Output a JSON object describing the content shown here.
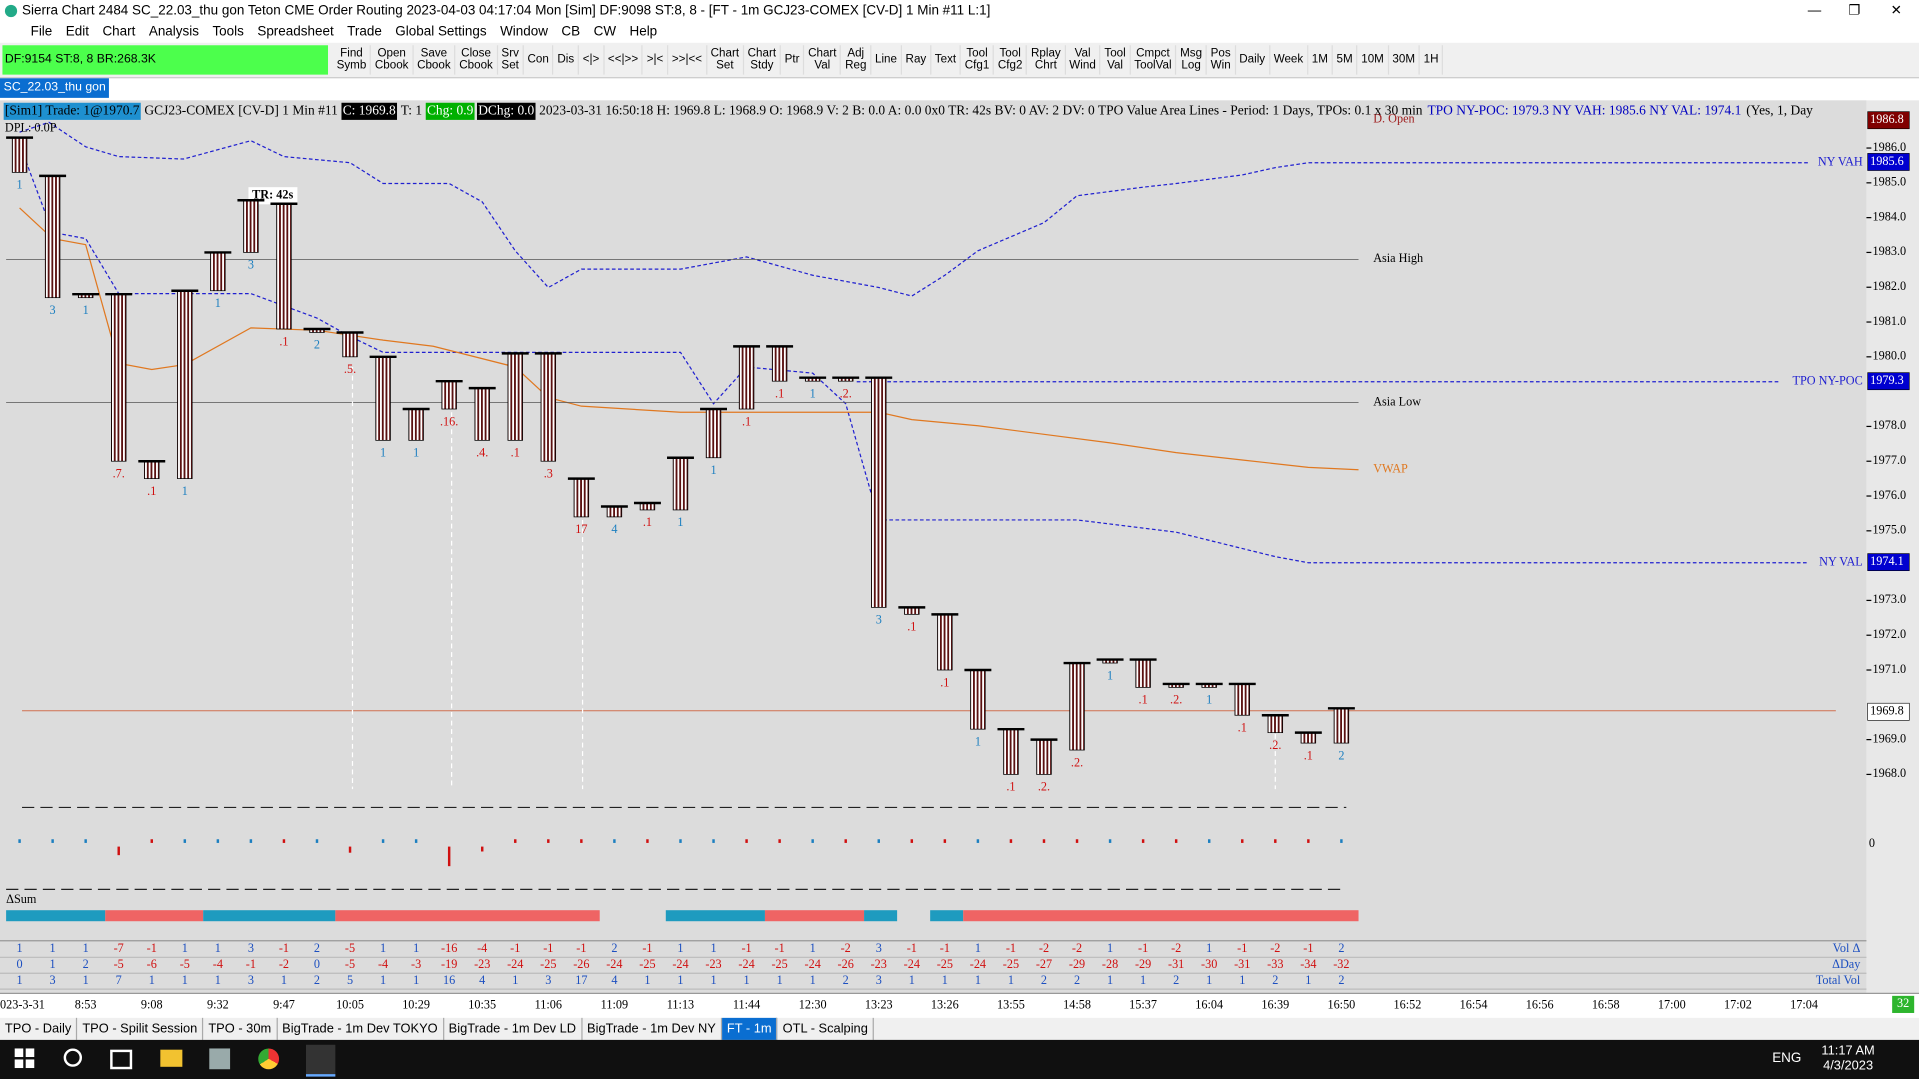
{
  "window": {
    "title": "Sierra Chart 2484 SC_22.03_thu gon  Teton CME Order Routing 2023-04-03  04:17:04 Mon [Sim]  DF:9098  ST:8, 8 - [FT - 1m GCJ23-COMEX [CV-D]  1 Min  #11 L:1]"
  },
  "menu": [
    "File",
    "Edit",
    "Chart",
    "Analysis",
    "Tools",
    "Spreadsheet",
    "Trade",
    "Global Settings",
    "Window",
    "CB",
    "CW",
    "Help"
  ],
  "toolbar": {
    "status": "DF:9154  ST:8, 8  BR:268.3K",
    "buttons": [
      "Find\nSymb",
      "Open\nCbook",
      "Save\nCbook",
      "Close\nCbook",
      "Srv\nSet",
      "Con",
      "Dis",
      "<|>",
      "<<|>>",
      ">|<",
      ">>|<<",
      "Chart\nSet",
      "Chart\nStdy",
      "Ptr",
      "Chart\nVal",
      "Adj\nReg",
      "Line",
      "Ray",
      "Text",
      "Tool\nCfg1",
      "Tool\nCfg2",
      "Rplay\nChrt",
      "Val\nWind",
      "Tool\nVal",
      "Cmpct\nToolVal",
      "Msg\nLog",
      "Pos\nWin",
      "Daily",
      "Week",
      "1M",
      "5M",
      "10M",
      "30M",
      "1H"
    ]
  },
  "chart_tab": "SC_22.03_thu gon",
  "header": [
    {
      "text": "[Sim1]  Trade: 1@1970.7",
      "bg": "#1e90d0",
      "fg": "#000"
    },
    {
      "text": "GCJ23-COMEX [CV-D]  1 Min  #11",
      "bg": "none",
      "fg": "#000"
    },
    {
      "text": "C: 1969.8",
      "bg": "#000",
      "fg": "#fff"
    },
    {
      "text": "T: 1",
      "bg": "none",
      "fg": "#000"
    },
    {
      "text": "Chg: 0.9",
      "bg": "#00b000",
      "fg": "#fff"
    },
    {
      "text": "DChg: 0.0",
      "bg": "#000",
      "fg": "#fff"
    },
    {
      "text": "2023-03-31 16:50:18 H: 1969.8 L: 1968.9 O: 1968.9 V: 2 B: 0.0 A: 0.0 0x0 TR: 42s BV: 0 AV: 2 DV: 0 TPO Value Area Lines - Period: 1 Days, TPOs: 0.1 x 30 min",
      "bg": "none",
      "fg": "#000"
    },
    {
      "text": "TPO NY-POC: 1979.3  NY VAH: 1985.6  NY VAL: 1974.1",
      "bg": "none",
      "fg": "#0000c0"
    },
    {
      "text": "(Yes, 1, Day",
      "bg": "none",
      "fg": "#000"
    }
  ],
  "dpl": "DPL: 0.0P",
  "tr_label": "TR: 42s",
  "level_labels": {
    "d_open": "D. Open",
    "ny_vah": "NY VAH",
    "asia_high": "Asia High",
    "poc": "TPO NY-POC",
    "asia_low": "Asia Low",
    "vwap": "VWAP",
    "ny_val": "NY VAL"
  },
  "price_ticks": [
    {
      "value": 1986,
      "label": "1986.0"
    },
    {
      "value": 1985,
      "label": "1985.0"
    },
    {
      "value": 1984,
      "label": "1984.0"
    },
    {
      "value": 1983,
      "label": "1983.0"
    },
    {
      "value": 1982,
      "label": "1982.0"
    },
    {
      "value": 1981,
      "label": "1981.0"
    },
    {
      "value": 1980,
      "label": "1980.0"
    },
    {
      "value": 1978,
      "label": "1978.0"
    },
    {
      "value": 1977,
      "label": "1977.0"
    },
    {
      "value": 1976,
      "label": "1976.0"
    },
    {
      "value": 1975,
      "label": "1975.0"
    },
    {
      "value": 1973,
      "label": "1973.0"
    },
    {
      "value": 1972,
      "label": "1972.0"
    },
    {
      "value": 1971,
      "label": "1971.0"
    },
    {
      "value": 1969,
      "label": "1969.0"
    },
    {
      "value": 1968,
      "label": "1968.0"
    }
  ],
  "price_boxes": [
    {
      "value": 1986.8,
      "color": "#800000",
      "fg": "#fff"
    },
    {
      "value": 1985.6,
      "color": "#0000d0",
      "fg": "#fff"
    },
    {
      "value": 1979.3,
      "color": "#0000d0",
      "fg": "#fff"
    },
    {
      "value": 1974.1,
      "color": "#0000d0",
      "fg": "#fff"
    },
    {
      "value": 1969.8,
      "color": "#ffffff",
      "fg": "#000"
    }
  ],
  "time_labels": [
    "023-3-31",
    "8:53",
    "9:08",
    "9:32",
    "9:47",
    "10:05",
    "10:29",
    "10:35",
    "11:06",
    "11:09",
    "11:13",
    "11:44",
    "12:30",
    "13:23",
    "13:26",
    "13:55",
    "14:58",
    "15:37",
    "16:04",
    "16:39",
    "16:50",
    "16:52",
    "16:54",
    "16:56",
    "16:58",
    "17:00",
    "17:02",
    "17:04"
  ],
  "bars": [
    {
      "high": 1986.3,
      "low": 1985.3,
      "label": "1"
    },
    {
      "high": 1985.2,
      "low": 1981.7,
      "label": "3"
    },
    {
      "high": 1981.8,
      "low": 1981.7,
      "label": "1"
    },
    {
      "high": 1981.8,
      "low": 1977.0,
      "label": ".7."
    },
    {
      "high": 1977.0,
      "low": 1976.5,
      "label": ".1"
    },
    {
      "high": 1981.9,
      "low": 1976.5,
      "label": "1"
    },
    {
      "high": 1983.0,
      "low": 1981.9,
      "label": "1"
    },
    {
      "high": 1984.5,
      "low": 1983.0,
      "label": "3"
    },
    {
      "high": 1984.4,
      "low": 1980.8,
      "label": ".1"
    },
    {
      "high": 1980.8,
      "low": 1980.7,
      "label": "2"
    },
    {
      "high": 1980.7,
      "low": 1980.0,
      "label": ".5."
    },
    {
      "high": 1980.0,
      "low": 1977.6,
      "label": "1"
    },
    {
      "high": 1978.5,
      "low": 1977.6,
      "label": "1"
    },
    {
      "high": 1979.3,
      "low": 1978.5,
      "label": ".16."
    },
    {
      "high": 1979.1,
      "low": 1977.6,
      "label": ".4."
    },
    {
      "high": 1980.1,
      "low": 1977.6,
      "label": ".1"
    },
    {
      "high": 1980.1,
      "low": 1977.0,
      "label": ".3"
    },
    {
      "high": 1976.5,
      "low": 1975.4,
      "label": "17"
    },
    {
      "high": 1975.7,
      "low": 1975.4,
      "label": "4"
    },
    {
      "high": 1975.8,
      "low": 1975.6,
      "label": ".1"
    },
    {
      "high": 1977.1,
      "low": 1975.6,
      "label": "1"
    },
    {
      "high": 1978.5,
      "low": 1977.1,
      "label": "1"
    },
    {
      "high": 1980.3,
      "low": 1978.5,
      "label": ".1"
    },
    {
      "high": 1980.3,
      "low": 1979.3,
      "label": ".1"
    },
    {
      "high": 1979.4,
      "low": 1979.3,
      "label": "1"
    },
    {
      "high": 1979.4,
      "low": 1979.3,
      "label": ".2."
    },
    {
      "high": 1979.4,
      "low": 1972.8,
      "label": "3"
    },
    {
      "high": 1972.8,
      "low": 1972.6,
      "label": ".1"
    },
    {
      "high": 1972.6,
      "low": 1971.0,
      "label": ".1"
    },
    {
      "high": 1971.0,
      "low": 1969.3,
      "label": "1"
    },
    {
      "high": 1969.3,
      "low": 1968.0,
      "label": ".1"
    },
    {
      "high": 1969.0,
      "low": 1968.0,
      "label": ".2."
    },
    {
      "high": 1971.2,
      "low": 1968.7,
      "label": ".2."
    },
    {
      "high": 1971.3,
      "low": 1971.2,
      "label": "1"
    },
    {
      "high": 1971.3,
      "low": 1970.5,
      "label": ".1"
    },
    {
      "high": 1970.6,
      "low": 1970.5,
      "label": ".2."
    },
    {
      "high": 1970.6,
      "low": 1970.5,
      "label": "1"
    },
    {
      "high": 1970.6,
      "low": 1969.7,
      "label": ".1"
    },
    {
      "high": 1969.7,
      "low": 1969.2,
      "label": ".2."
    },
    {
      "high": 1969.2,
      "low": 1968.9,
      "label": ".1"
    },
    {
      "high": 1969.9,
      "low": 1968.9,
      "label": "2"
    }
  ],
  "lower_panel": {
    "zero": "0",
    "delta_sum": "ΔSum"
  },
  "table": {
    "rows": [
      {
        "name": "Vol Δ",
        "values": [
          1,
          1,
          1,
          -7,
          -1,
          1,
          1,
          3,
          -1,
          2,
          -5,
          1,
          1,
          -16,
          -4,
          -1,
          -1,
          -1,
          2,
          -1,
          1,
          1,
          -1,
          -1,
          1,
          -2,
          3,
          -1,
          -1,
          1,
          -1,
          -2,
          -2,
          1,
          -1,
          -2,
          1,
          -1,
          -2,
          -1,
          2
        ]
      },
      {
        "name": "ΔDay",
        "values": [
          0,
          1,
          2,
          -5,
          -6,
          -5,
          -4,
          -1,
          -2,
          0,
          -5,
          -4,
          -3,
          -19,
          -23,
          -24,
          -25,
          -26,
          -24,
          -25,
          -24,
          -23,
          -24,
          -25,
          -24,
          -26,
          -23,
          -24,
          -25,
          -24,
          -25,
          -27,
          -29,
          -28,
          -29,
          -31,
          -30,
          -31,
          -33,
          -34,
          -32
        ]
      },
      {
        "name": "Total Vol",
        "values": [
          1,
          3,
          1,
          7,
          1,
          1,
          1,
          3,
          1,
          2,
          5,
          1,
          1,
          16,
          4,
          1,
          3,
          17,
          4,
          1,
          1,
          1,
          1,
          1,
          1,
          2,
          3,
          1,
          1,
          1,
          1,
          2,
          2,
          1,
          1,
          2,
          1,
          1,
          2,
          1,
          2
        ]
      }
    ]
  },
  "corner": "32",
  "sheets": [
    "TPO - Daily",
    "TPO - Spilit Session",
    "TPO - 30m",
    "BigTrade - 1m Dev TOKYO",
    "BigTrade - 1m Dev LD",
    "BigTrade - 1m Dev NY",
    "FT - 1m",
    "OTL - Scalping"
  ],
  "taskbar": {
    "lang": "ENG",
    "time": "11:17 AM",
    "date": "4/3/2023"
  }
}
